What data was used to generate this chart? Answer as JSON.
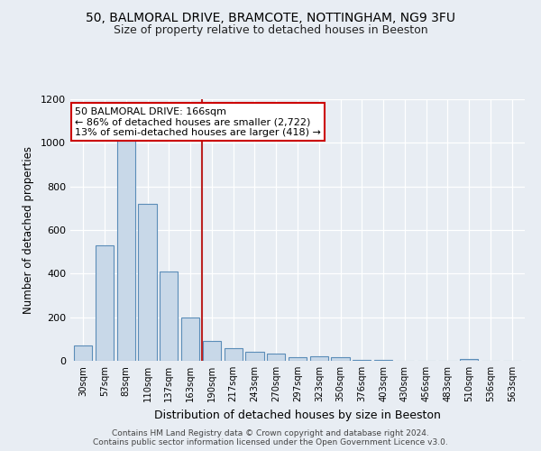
{
  "title1": "50, BALMORAL DRIVE, BRAMCOTE, NOTTINGHAM, NG9 3FU",
  "title2": "Size of property relative to detached houses in Beeston",
  "xlabel": "Distribution of detached houses by size in Beeston",
  "ylabel": "Number of detached properties",
  "bar_labels": [
    "30sqm",
    "57sqm",
    "83sqm",
    "110sqm",
    "137sqm",
    "163sqm",
    "190sqm",
    "217sqm",
    "243sqm",
    "270sqm",
    "297sqm",
    "323sqm",
    "350sqm",
    "376sqm",
    "403sqm",
    "430sqm",
    "456sqm",
    "483sqm",
    "510sqm",
    "536sqm",
    "563sqm"
  ],
  "bar_values": [
    70,
    530,
    1010,
    720,
    410,
    200,
    90,
    60,
    40,
    35,
    15,
    20,
    18,
    5,
    3,
    2,
    2,
    2,
    10,
    2,
    0
  ],
  "bar_color": "#c8d8e8",
  "bar_edge_color": "#5b8db8",
  "annotation_title": "50 BALMORAL DRIVE: 166sqm",
  "annotation_line1": "← 86% of detached houses are smaller (2,722)",
  "annotation_line2": "13% of semi-detached houses are larger (418) →",
  "annotation_box_color": "#ffffff",
  "annotation_box_edge": "#cc0000",
  "vline_color": "#bb2222",
  "ylim": [
    0,
    1200
  ],
  "yticks": [
    0,
    200,
    400,
    600,
    800,
    1000,
    1200
  ],
  "background_color": "#e8edf3",
  "grid_color": "#ffffff",
  "footer1": "Contains HM Land Registry data © Crown copyright and database right 2024.",
  "footer2": "Contains public sector information licensed under the Open Government Licence v3.0."
}
